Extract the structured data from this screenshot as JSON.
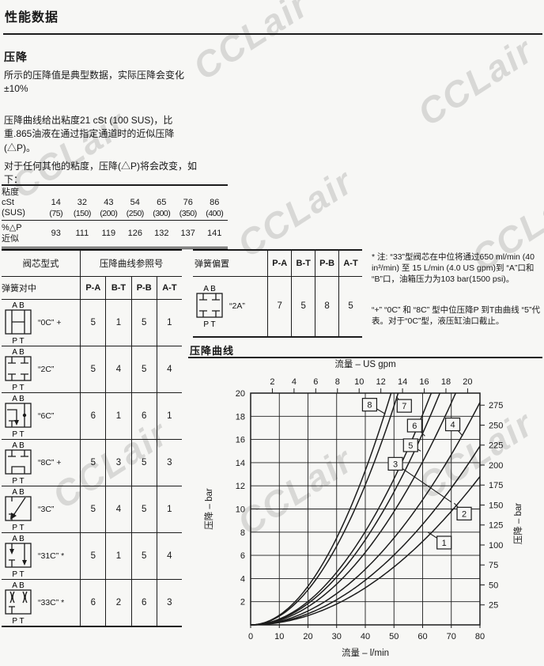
{
  "page": {
    "title": "性能数据",
    "watermark": "CCLair"
  },
  "section": {
    "heading": "压降",
    "para1": "所示的压降值是典型数据，实际压降会变化±10%",
    "para2": "压降曲线给出粘度21 cSt (100 SUS)，比重.865油液在通过指定通道时的近似压降(△P)。",
    "para3": "对于任何其他的粘度，压降(△P)将会改变，如下："
  },
  "viscosity_table": {
    "row1_label": [
      "粘度",
      "cSt",
      "(SUS)"
    ],
    "cst": [
      "14",
      "32",
      "43",
      "54",
      "65",
      "76",
      "86"
    ],
    "sus": [
      "(75)",
      "(150)",
      "(200)",
      "(250)",
      "(300)",
      "(350)",
      "(400)"
    ],
    "row2_label": [
      "%△P",
      "近似"
    ],
    "pct": [
      "93",
      "111",
      "119",
      "126",
      "132",
      "137",
      "141"
    ]
  },
  "ports": {
    "top": "A B",
    "bottom": "P T"
  },
  "spool_table": {
    "header1": [
      "阀芯型式",
      "压降曲线参照号"
    ],
    "header2": [
      "弹簧对中",
      "P-A",
      "B-T",
      "P-B",
      "A-T"
    ],
    "rows": [
      {
        "symbol": "0C",
        "name": "“0C” +",
        "values": [
          "5",
          "1",
          "5",
          "1"
        ]
      },
      {
        "symbol": "2C",
        "name": "“2C”",
        "values": [
          "5",
          "4",
          "5",
          "4"
        ]
      },
      {
        "symbol": "6C",
        "name": "“6C”",
        "values": [
          "6",
          "1",
          "6",
          "1"
        ]
      },
      {
        "symbol": "8C",
        "name": "“8C” +",
        "values": [
          "5",
          "3",
          "5",
          "3"
        ]
      },
      {
        "symbol": "3C",
        "name": "“3C”",
        "values": [
          "5",
          "4",
          "5",
          "1"
        ]
      },
      {
        "symbol": "31C",
        "name": "“31C” *",
        "values": [
          "5",
          "1",
          "5",
          "4"
        ]
      },
      {
        "symbol": "33C",
        "name": "“33C” *",
        "values": [
          "6",
          "2",
          "6",
          "3"
        ]
      }
    ]
  },
  "spring_table": {
    "header": [
      "弹簧偏置",
      "P-A",
      "B-T",
      "P-B",
      "A-T"
    ],
    "row": {
      "symbol": "2A",
      "name": "“2A”",
      "values": [
        "7",
        "5",
        "8",
        "5"
      ]
    }
  },
  "notes": {
    "note1": "* 注: “33”型阀芯在中位将通过650 ml/min (40 in³/min) 至 15 L/min (4.0 US gpm)到 “A”口和 “B”口，油箱压力为103 bar(1500 psi)。",
    "note2": "“+” “0C” 和 “8C” 型中位压降P 到T由曲线 “5”代表。对于“0C”型，液压缸油口截止。"
  },
  "chart_heading": "压降曲线",
  "chart_data": {
    "type": "line",
    "title": "压降曲线",
    "x_bottom": {
      "label": "流量 – l/min",
      "range": [
        0,
        80
      ],
      "ticks": [
        0,
        10,
        20,
        30,
        40,
        50,
        60,
        70,
        80
      ]
    },
    "x_top": {
      "label": "流量 – US gpm",
      "ticks": [
        2,
        4,
        6,
        8,
        10,
        12,
        14,
        16,
        18,
        20
      ],
      "lpm_per_gpm": 3.785
    },
    "y_left": {
      "label": "压降 – bar",
      "range": [
        0,
        20
      ],
      "ticks": [
        2,
        4,
        6,
        8,
        10,
        12,
        14,
        16,
        18,
        20
      ]
    },
    "y_right": {
      "label": "压降 – bar",
      "ticks": [
        25,
        50,
        75,
        100,
        125,
        150,
        175,
        200,
        225,
        250,
        275
      ],
      "psi_per_bar": 14.5038
    },
    "grid": {
      "x_step": 10,
      "y_step": 2
    },
    "series_model": "dP_bar = k * (Q_lpm)^2, Q from 0 to min(80, sqrt(20/k))",
    "series": [
      {
        "label": "1",
        "k": 0.002,
        "label_box": [
          67.5,
          7.1
        ],
        "leader_end": [
          61.8,
          8.0
        ]
      },
      {
        "label": "2",
        "k": 0.00241,
        "label_box": [
          74.5,
          9.6
        ],
        "leader_end": [
          71.0,
          10.5
        ]
      },
      {
        "label": "3",
        "k": 0.003,
        "label_box": [
          50.5,
          13.9
        ],
        "leader_end": [
          70.0,
          10.6
        ]
      },
      {
        "label": "4",
        "k": 0.00391,
        "label_box": [
          70.5,
          17.3
        ],
        "leader_end": [
          74.0,
          16.3
        ]
      },
      {
        "label": "5",
        "k": 0.00459,
        "label_box": [
          55.8,
          15.5
        ],
        "leader_end": [
          59.3,
          15.0
        ]
      },
      {
        "label": "6",
        "k": 0.00504,
        "label_box": [
          57.2,
          17.2
        ],
        "leader_end": [
          60.8,
          16.3
        ]
      },
      {
        "label": "7",
        "k": 0.00755,
        "label_box": [
          53.6,
          18.9
        ],
        "leader_end": [
          50.8,
          19.7
        ]
      },
      {
        "label": "8",
        "k": 0.00833,
        "label_box": [
          41.5,
          19.0
        ],
        "leader_end": [
          47.0,
          18.2
        ]
      }
    ]
  }
}
